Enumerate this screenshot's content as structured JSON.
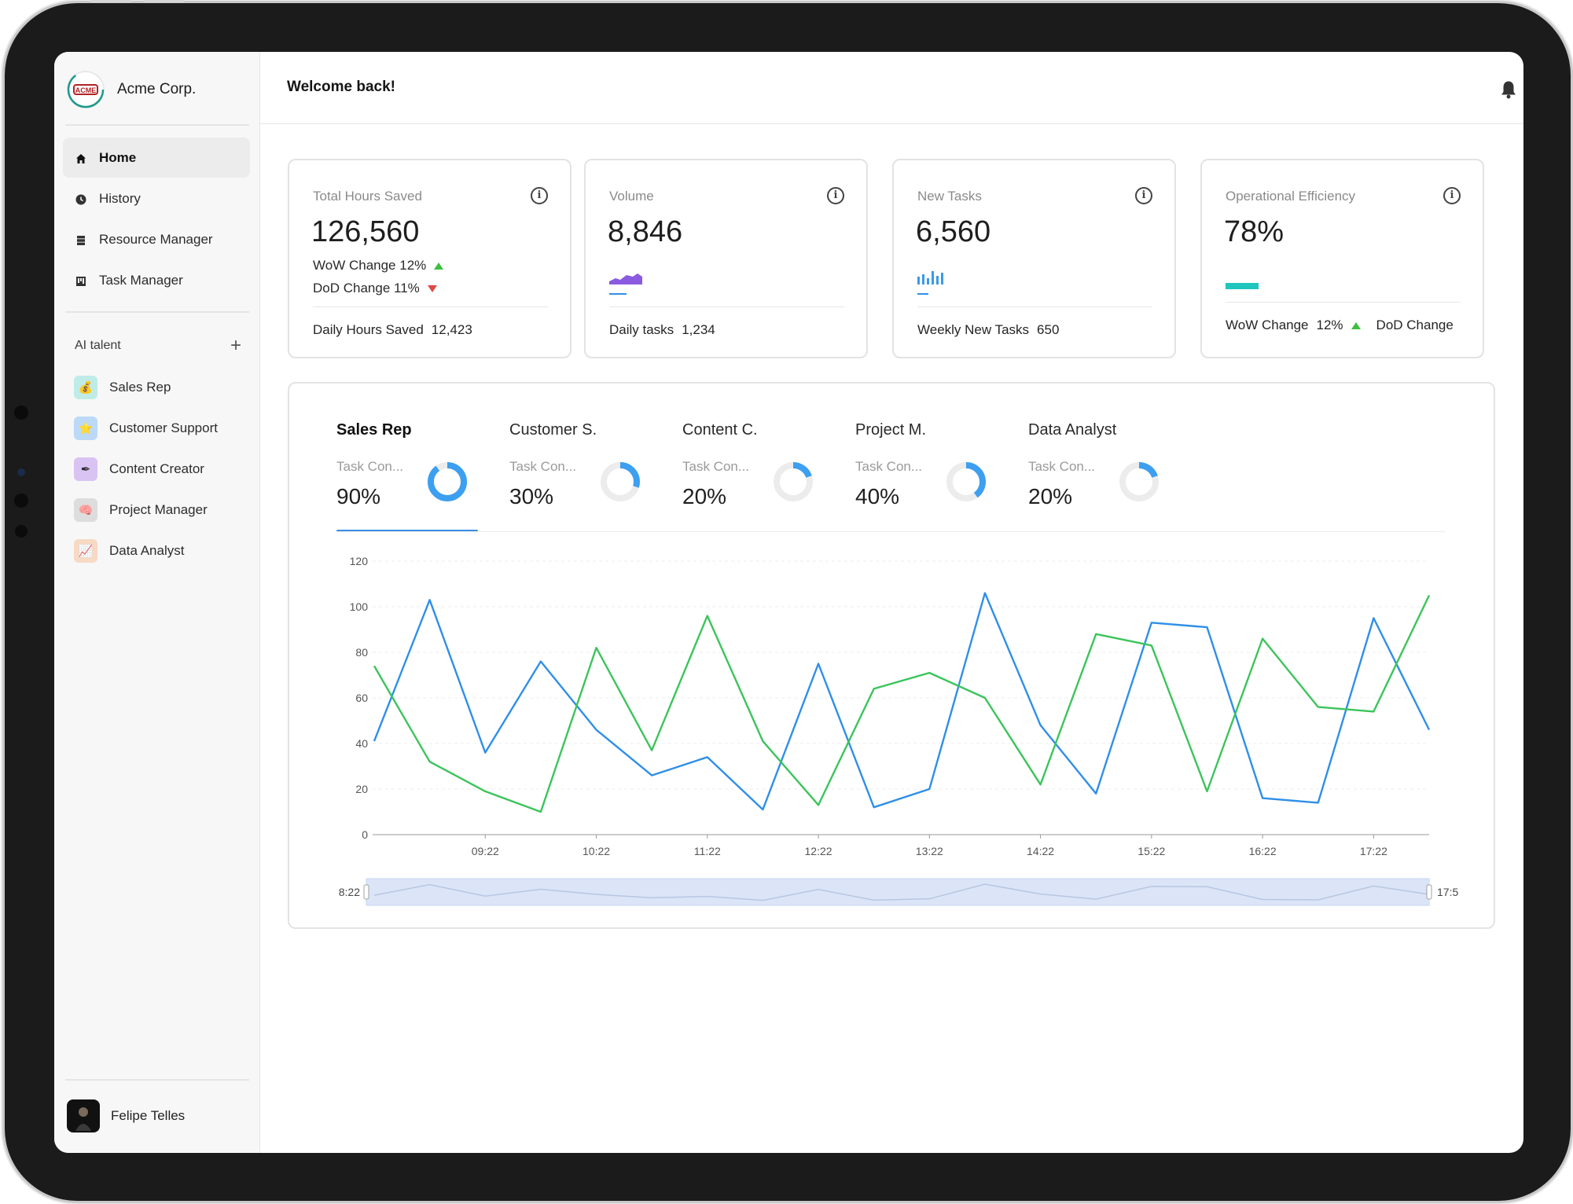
{
  "app": {
    "brand_name": "Acme Corp.",
    "logo_text": "ACME"
  },
  "sidebar": {
    "nav": [
      {
        "label": "Home",
        "icon": "home-icon",
        "active": true
      },
      {
        "label": "History",
        "icon": "clock-icon",
        "active": false
      },
      {
        "label": "Resource Manager",
        "icon": "database-icon",
        "active": false
      },
      {
        "label": "Task Manager",
        "icon": "kanban-icon",
        "active": false
      }
    ],
    "section_title": "AI talent",
    "section_add": "+",
    "talent": [
      {
        "label": "Sales Rep",
        "icon": "money-bag-icon",
        "glyph": "💰",
        "bg": "#bfece6"
      },
      {
        "label": "Customer Support",
        "icon": "star-icon",
        "glyph": "⭐",
        "bg": "#bcd9f7"
      },
      {
        "label": "Content Creator",
        "icon": "pen-icon",
        "glyph": "✒",
        "bg": "#d9c3f2"
      },
      {
        "label": "Project Manager",
        "icon": "brain-icon",
        "glyph": "🧠",
        "bg": "#dddddd"
      },
      {
        "label": "Data Analyst",
        "icon": "chart-icon",
        "glyph": "📈",
        "bg": "#f7d9c4"
      }
    ],
    "user_name": "Felipe Telles"
  },
  "header": {
    "welcome": "Welcome back!",
    "more": "···"
  },
  "cards": [
    {
      "title": "Total Hours Saved",
      "value": "126,560",
      "wow": "WoW Change 12%",
      "dod": "DoD Change 11%",
      "foot_label": "Daily Hours Saved",
      "foot_value": "12,423"
    },
    {
      "title": "Volume",
      "value": "8,846",
      "foot_label": "Daily tasks",
      "foot_value": "1,234"
    },
    {
      "title": "New Tasks",
      "value": "6,560",
      "foot_label": "Weekly New Tasks",
      "foot_value": "650"
    },
    {
      "title": "Operational Efficiency",
      "value": "78%",
      "foot_label": "WoW Change",
      "foot_value": "12%",
      "foot_extra": "DoD Change"
    }
  ],
  "colors": {
    "blue": "#2f8fe8",
    "green": "#3cc45c",
    "purple": "#8a5be0",
    "teal": "#1fc6bd",
    "donut_track": "#ececec",
    "up": "#3fbf3f",
    "down": "#e04848"
  },
  "tabs": [
    {
      "name": "Sales Rep",
      "metric": "Task Con...",
      "pct": "90%",
      "value": 0.9,
      "active": true
    },
    {
      "name": "Customer S.",
      "metric": "Task Con...",
      "pct": "30%",
      "value": 0.3,
      "active": false
    },
    {
      "name": "Content C.",
      "metric": "Task Con...",
      "pct": "20%",
      "value": 0.2,
      "active": false
    },
    {
      "name": "Project M.",
      "metric": "Task Con...",
      "pct": "40%",
      "value": 0.4,
      "active": false
    },
    {
      "name": "Data Analyst",
      "metric": "Task Con...",
      "pct": "20%",
      "value": 0.2,
      "active": false
    }
  ],
  "chart_data": {
    "type": "line",
    "x": [
      "08:22",
      "08:52",
      "09:22",
      "09:52",
      "10:22",
      "10:52",
      "11:22",
      "11:52",
      "12:22",
      "12:52",
      "13:22",
      "13:52",
      "14:22",
      "14:52",
      "15:22",
      "15:52",
      "16:22",
      "16:52",
      "17:22",
      "17:52"
    ],
    "x_tick_labels": [
      "09:22",
      "10:22",
      "11:22",
      "12:22",
      "13:22",
      "14:22",
      "15:22",
      "16:22",
      "17:22"
    ],
    "ylim": [
      0,
      120
    ],
    "y_ticks": [
      0,
      20,
      40,
      60,
      80,
      100,
      120
    ],
    "grid": true,
    "series": [
      {
        "values": [
          41,
          103,
          36,
          76,
          46,
          26,
          34,
          11,
          75,
          12,
          20,
          106,
          48,
          18,
          93,
          91,
          16,
          14,
          95,
          46
        ]
      },
      {
        "values": [
          74,
          32,
          19,
          10,
          82,
          37,
          96,
          41,
          13,
          64,
          71,
          60,
          22,
          88,
          83,
          19,
          86,
          56,
          54,
          105
        ]
      }
    ],
    "range_start": "8:22",
    "range_end": "17:5"
  }
}
